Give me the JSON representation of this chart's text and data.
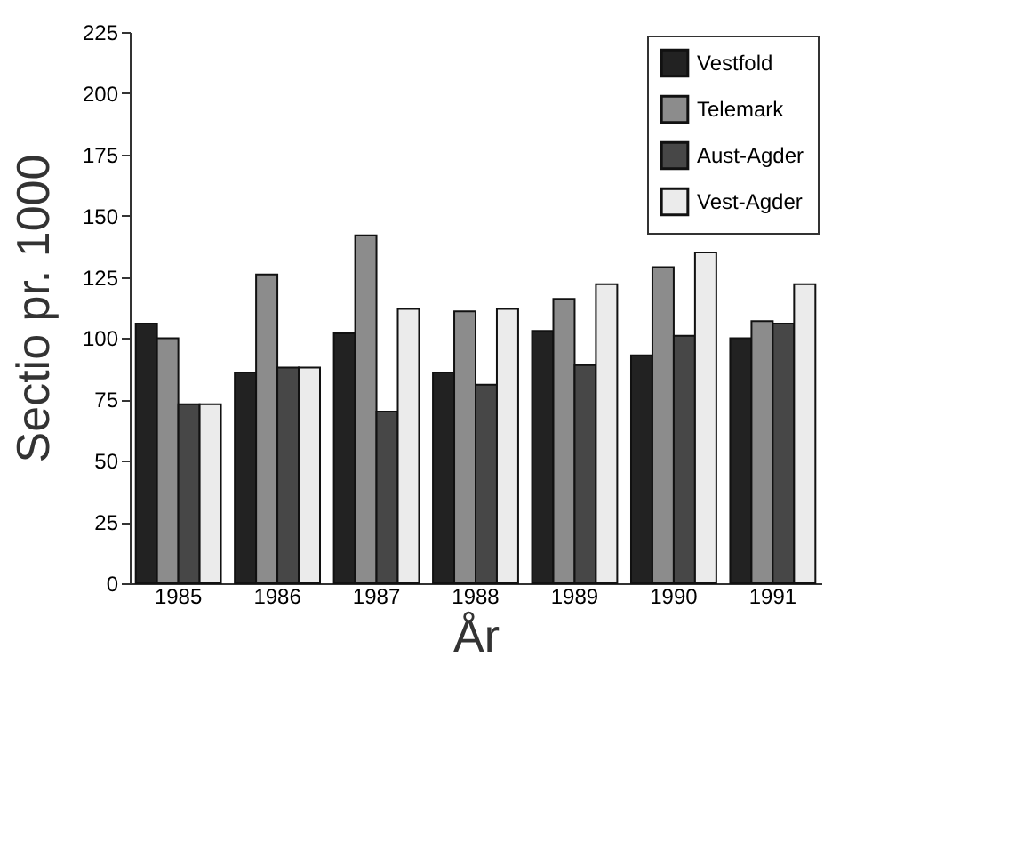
{
  "chart_data": {
    "type": "bar",
    "xlabel": "År",
    "ylabel": "Sectio pr. 1000",
    "categories": [
      "1985",
      "1986",
      "1987",
      "1988",
      "1989",
      "1990",
      "1991"
    ],
    "series": [
      {
        "name": "Vestfold",
        "color": "#222222",
        "values": [
          106,
          86,
          102,
          86,
          103,
          93,
          100
        ]
      },
      {
        "name": "Telemark",
        "color": "#8c8c8c",
        "values": [
          100,
          126,
          142,
          111,
          116,
          129,
          107
        ]
      },
      {
        "name": "Aust-Agder",
        "color": "#474747",
        "values": [
          73,
          88,
          70,
          81,
          89,
          101,
          106
        ]
      },
      {
        "name": "Vest-Agder",
        "color": "#ebebeb",
        "values": [
          73,
          88,
          112,
          112,
          122,
          135,
          122
        ]
      }
    ],
    "ylim": [
      0,
      225
    ],
    "yticks": [
      0,
      25,
      50,
      75,
      100,
      125,
      150,
      175,
      200,
      225
    ],
    "grid": false,
    "legend": "top right"
  }
}
